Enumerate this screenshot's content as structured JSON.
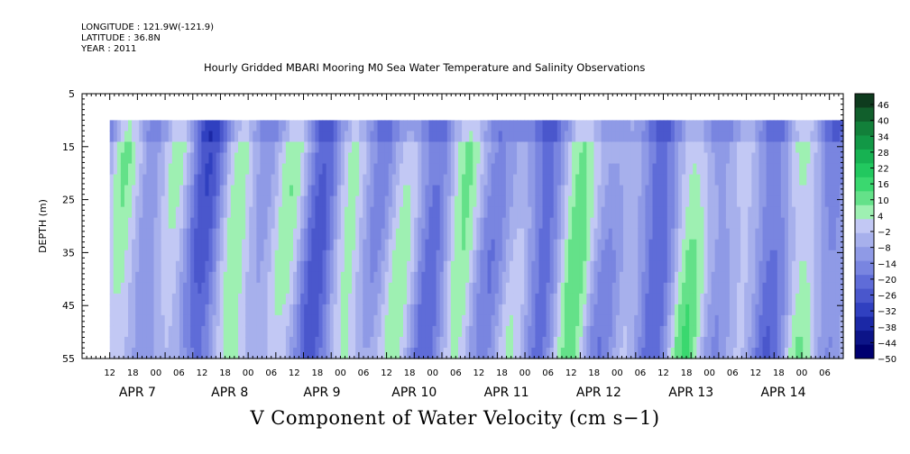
{
  "header": {
    "longitude": "LONGITUDE : 121.9W(-121.9)",
    "latitude": "LATITUDE : 36.8N",
    "year": "YEAR : 2011"
  },
  "title": "Hourly Gridded MBARI Mooring M0 Sea Water Temperature and Salinity Observations",
  "bottom_title": "V Component of Water Velocity (cm s−1)",
  "chart_data": {
    "type": "heatmap",
    "ylabel": "DEPTH (m)",
    "y_axis": {
      "range": [
        5,
        55
      ],
      "inverted": true,
      "ticks": [
        5,
        15,
        25,
        35,
        45,
        55
      ],
      "tick_labels": [
        "5",
        "15",
        "25",
        "35",
        "45",
        "55"
      ]
    },
    "x_axis": {
      "range_hours": [
        0,
        165
      ],
      "hour_ticks": [
        "12",
        "18",
        "00",
        "06",
        "12",
        "18",
        "00",
        "06",
        "12",
        "18",
        "00",
        "06",
        "12",
        "18",
        "00",
        "06",
        "12",
        "18",
        "00",
        "06",
        "12",
        "18",
        "00",
        "06",
        "12",
        "18",
        "00",
        "06",
        "12",
        "18",
        "00",
        "06"
      ],
      "day_labels": [
        "APR  7",
        "APR  8",
        "APR  9",
        "APR 10",
        "APR 11",
        "APR 12",
        "APR 13",
        "APR 14"
      ]
    },
    "data_extent": {
      "depth_min": 10,
      "depth_max": 55
    },
    "colorbar": {
      "labels": [
        "46",
        "40",
        "34",
        "28",
        "22",
        "16",
        "10",
        "4",
        "−2",
        "−8",
        "−14",
        "−20",
        "−26",
        "−32",
        "−38",
        "−44",
        "−50"
      ],
      "min": -50,
      "max": 52
    }
  }
}
